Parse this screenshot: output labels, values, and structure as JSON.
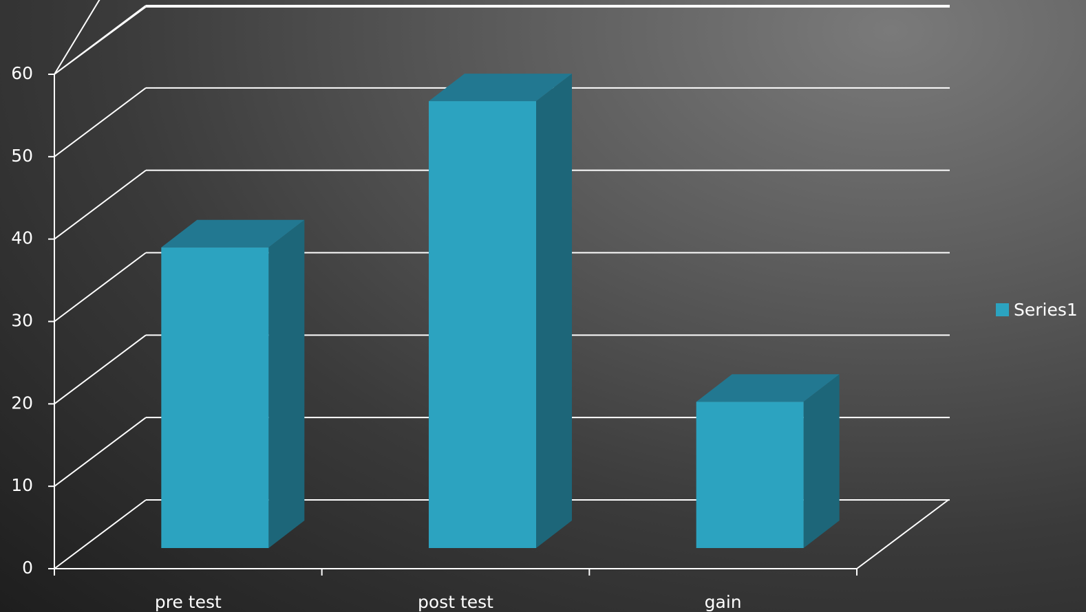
{
  "chart_data": {
    "type": "bar",
    "style": "3d-column",
    "categories": [
      "pre test",
      "post test",
      "gain"
    ],
    "series": [
      {
        "name": "Series1",
        "values": [
          37,
          55,
          18
        ],
        "color": "#2ca3c0"
      }
    ],
    "ylim": [
      0,
      60
    ],
    "yticks": [
      "0",
      "10",
      "20",
      "30",
      "40",
      "50",
      "60"
    ],
    "grid": true,
    "legend": "right",
    "colors": {
      "bar_front": "#2ca3c0",
      "bar_top": "#227891",
      "bar_side": "#1d6679",
      "grid": "#ffffff",
      "text": "#ffffff"
    }
  }
}
